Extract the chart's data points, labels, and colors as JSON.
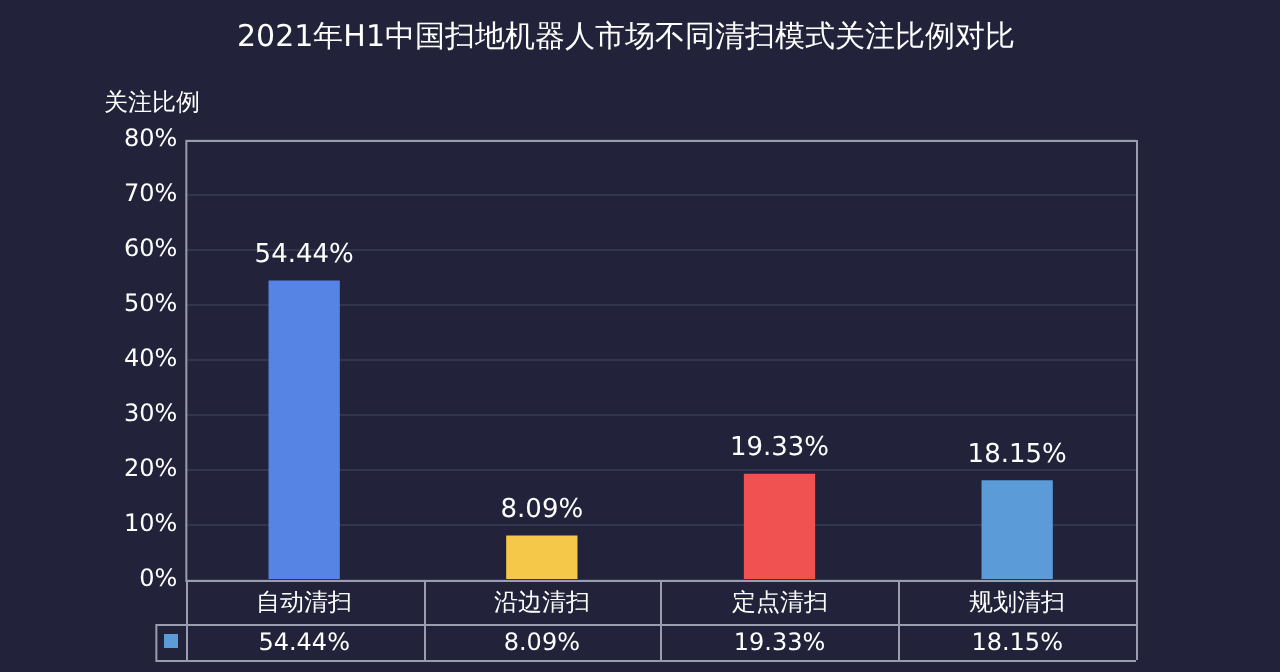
{
  "chart_data": {
    "type": "bar",
    "title": "2021年H1中国扫地机器人市场不同清扫模式关注比例对比",
    "ylabel": "关注比例",
    "categories": [
      "自动清扫",
      "沿边清扫",
      "定点清扫",
      "规划清扫"
    ],
    "values": [
      54.44,
      8.09,
      19.33,
      18.15
    ],
    "colors": [
      "#5584e4",
      "#f5c84a",
      "#f05252",
      "#5a9bd8"
    ],
    "value_labels": [
      "54.44%",
      "8.09%",
      "19.33%",
      "18.15%"
    ],
    "ylim": [
      0,
      80
    ],
    "yticks": [
      {
        "value": 0,
        "label": "0%"
      },
      {
        "value": 10,
        "label": "10%"
      },
      {
        "value": 20,
        "label": "20%"
      },
      {
        "value": 30,
        "label": "30%"
      },
      {
        "value": 40,
        "label": "40%"
      },
      {
        "value": 50,
        "label": "50%"
      },
      {
        "value": 60,
        "label": "60%"
      },
      {
        "value": 70,
        "label": "70%"
      },
      {
        "value": 80,
        "label": "80%"
      }
    ],
    "grid": "y"
  }
}
